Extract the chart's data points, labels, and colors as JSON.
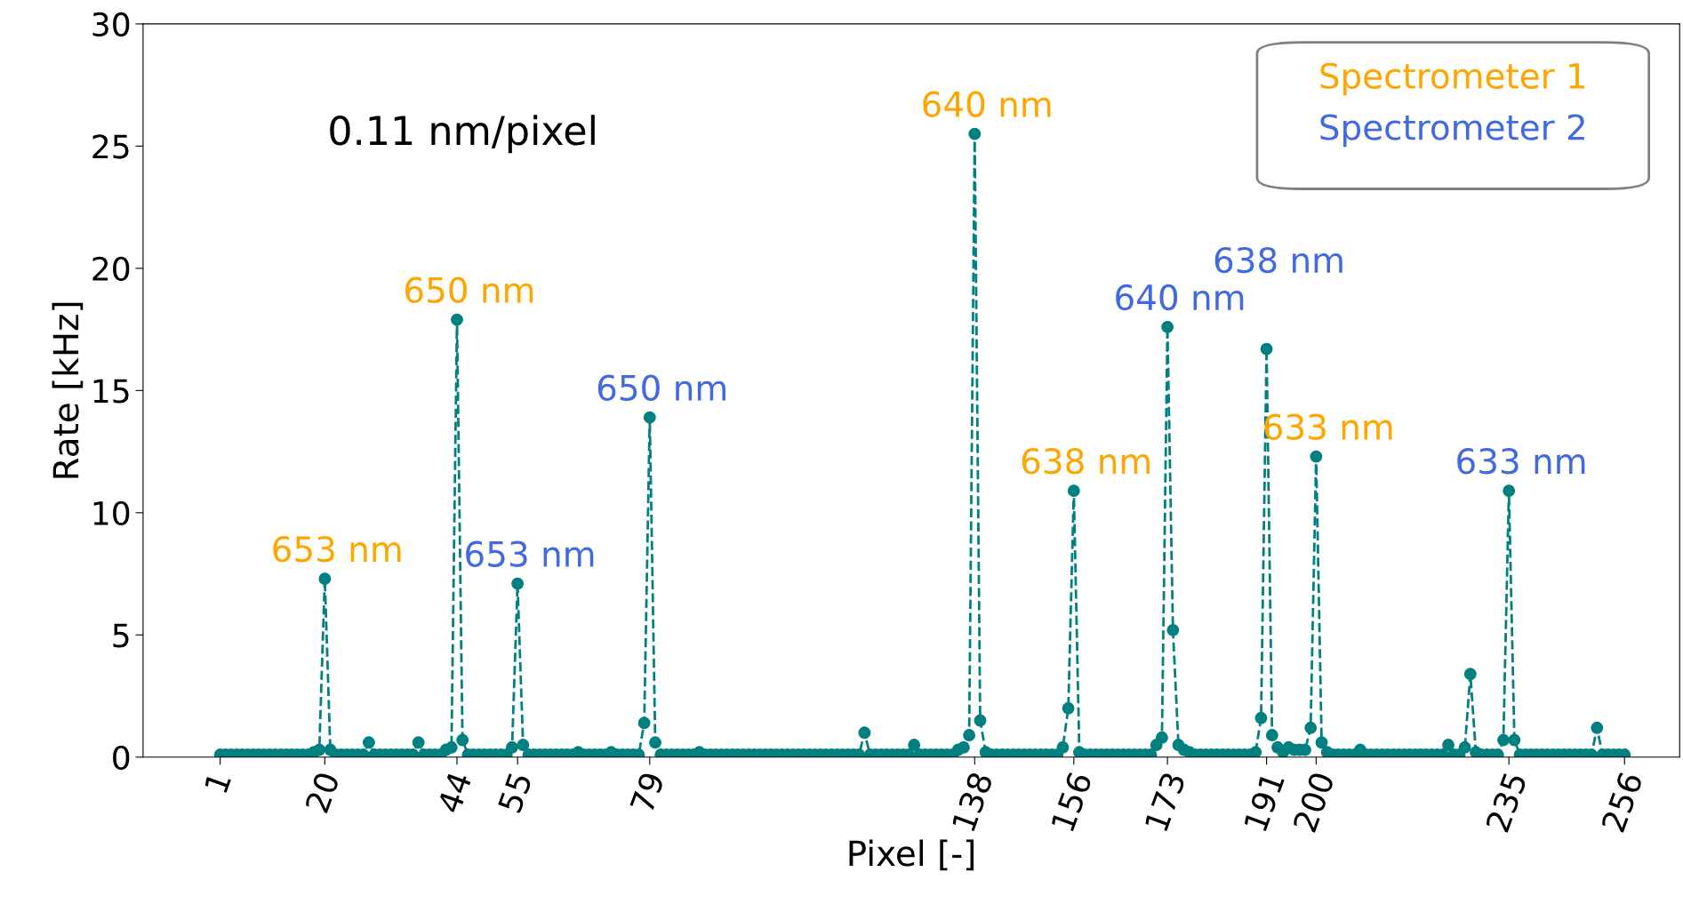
{
  "chart_data": {
    "type": "line",
    "xlabel": "Pixel [-]",
    "ylabel": "Rate [kHz]",
    "x": [
      1,
      2,
      3,
      4,
      5,
      6,
      7,
      8,
      9,
      10,
      11,
      12,
      13,
      14,
      15,
      16,
      17,
      18,
      19,
      20,
      21,
      22,
      23,
      24,
      25,
      26,
      27,
      28,
      29,
      30,
      31,
      32,
      33,
      34,
      35,
      36,
      37,
      38,
      39,
      40,
      41,
      42,
      43,
      44,
      45,
      46,
      47,
      48,
      49,
      50,
      51,
      52,
      53,
      54,
      55,
      56,
      57,
      58,
      59,
      60,
      61,
      62,
      63,
      64,
      65,
      66,
      67,
      68,
      69,
      70,
      71,
      72,
      73,
      74,
      75,
      76,
      77,
      78,
      79,
      80,
      81,
      82,
      83,
      84,
      85,
      86,
      87,
      88,
      89,
      90,
      91,
      92,
      93,
      94,
      95,
      96,
      97,
      98,
      99,
      100,
      101,
      102,
      103,
      104,
      105,
      106,
      107,
      108,
      109,
      110,
      111,
      112,
      113,
      114,
      115,
      116,
      117,
      118,
      119,
      120,
      121,
      122,
      123,
      124,
      125,
      126,
      127,
      128,
      129,
      130,
      131,
      132,
      133,
      134,
      135,
      136,
      137,
      138,
      139,
      140,
      141,
      142,
      143,
      144,
      145,
      146,
      147,
      148,
      149,
      150,
      151,
      152,
      153,
      154,
      155,
      156,
      157,
      158,
      159,
      160,
      161,
      162,
      163,
      164,
      165,
      166,
      167,
      168,
      169,
      170,
      171,
      172,
      173,
      174,
      175,
      176,
      177,
      178,
      179,
      180,
      181,
      182,
      183,
      184,
      185,
      186,
      187,
      188,
      189,
      190,
      191,
      192,
      193,
      194,
      195,
      196,
      197,
      198,
      199,
      200,
      201,
      202,
      203,
      204,
      205,
      206,
      207,
      208,
      209,
      210,
      211,
      212,
      213,
      214,
      215,
      216,
      217,
      218,
      219,
      220,
      221,
      222,
      223,
      224,
      225,
      226,
      227,
      228,
      229,
      230,
      231,
      232,
      233,
      234,
      235,
      236,
      237,
      238,
      239,
      240,
      241,
      242,
      243,
      244,
      245,
      246,
      247,
      248,
      249,
      250,
      251,
      252,
      253,
      254,
      255,
      256
    ],
    "series": [
      {
        "color": "#008080",
        "values": [
          0.1,
          0.1,
          0.1,
          0.1,
          0.1,
          0.1,
          0.1,
          0.1,
          0.1,
          0.1,
          0.1,
          0.1,
          0.1,
          0.1,
          0.1,
          0.1,
          0.1,
          0.2,
          0.3,
          7.3,
          0.3,
          0.1,
          0.1,
          0.1,
          0.1,
          0.1,
          0.1,
          0.6,
          0.1,
          0.1,
          0.1,
          0.1,
          0.1,
          0.1,
          0.1,
          0.1,
          0.6,
          0.1,
          0.1,
          0.1,
          0.1,
          0.3,
          0.4,
          17.9,
          0.7,
          0.1,
          0.1,
          0.1,
          0.1,
          0.1,
          0.1,
          0.1,
          0.1,
          0.4,
          7.1,
          0.5,
          0.1,
          0.1,
          0.1,
          0.1,
          0.1,
          0.1,
          0.1,
          0.1,
          0.1,
          0.2,
          0.1,
          0.1,
          0.1,
          0.1,
          0.1,
          0.2,
          0.1,
          0.1,
          0.1,
          0.1,
          0.1,
          1.4,
          13.9,
          0.6,
          0.1,
          0.1,
          0.1,
          0.1,
          0.1,
          0.1,
          0.1,
          0.2,
          0.1,
          0.1,
          0.1,
          0.1,
          0.1,
          0.1,
          0.1,
          0.1,
          0.1,
          0.1,
          0.1,
          0.1,
          0.1,
          0.1,
          0.1,
          0.1,
          0.1,
          0.1,
          0.1,
          0.1,
          0.1,
          0.1,
          0.1,
          0.1,
          0.1,
          0.1,
          0.1,
          0.1,
          0.1,
          1.0,
          0.1,
          0.1,
          0.1,
          0.1,
          0.1,
          0.1,
          0.1,
          0.1,
          0.5,
          0.1,
          0.1,
          0.1,
          0.1,
          0.1,
          0.1,
          0.1,
          0.3,
          0.4,
          0.9,
          25.5,
          1.5,
          0.2,
          0.1,
          0.1,
          0.1,
          0.1,
          0.1,
          0.1,
          0.1,
          0.1,
          0.1,
          0.1,
          0.1,
          0.1,
          0.1,
          0.4,
          2.0,
          10.9,
          0.2,
          0.1,
          0.1,
          0.1,
          0.1,
          0.1,
          0.1,
          0.1,
          0.1,
          0.1,
          0.1,
          0.1,
          0.1,
          0.1,
          0.5,
          0.8,
          17.6,
          5.2,
          0.5,
          0.3,
          0.2,
          0.1,
          0.1,
          0.1,
          0.1,
          0.1,
          0.1,
          0.1,
          0.1,
          0.1,
          0.1,
          0.1,
          0.2,
          1.6,
          16.7,
          0.9,
          0.4,
          0.2,
          0.4,
          0.3,
          0.3,
          0.3,
          1.2,
          12.3,
          0.6,
          0.2,
          0.1,
          0.1,
          0.1,
          0.1,
          0.1,
          0.3,
          0.1,
          0.1,
          0.1,
          0.1,
          0.1,
          0.1,
          0.1,
          0.1,
          0.1,
          0.1,
          0.1,
          0.1,
          0.1,
          0.1,
          0.1,
          0.5,
          0.1,
          0.1,
          0.4,
          3.4,
          0.2,
          0.1,
          0.1,
          0.1,
          0.1,
          0.7,
          10.9,
          0.7,
          0.1,
          0.1,
          0.1,
          0.1,
          0.1,
          0.1,
          0.1,
          0.1,
          0.1,
          0.1,
          0.1,
          0.1,
          0.1,
          0.1,
          1.2,
          0.1,
          0.1,
          0.1,
          0.1,
          0.1
        ]
      }
    ],
    "marker": "circle",
    "line_style": "dashed",
    "xlim": [
      -13,
      266
    ],
    "xticks": [
      1,
      20,
      44,
      55,
      79,
      138,
      156,
      173,
      191,
      200,
      235,
      256
    ],
    "ylim": [
      0,
      30
    ],
    "yticks": [
      0,
      5,
      10,
      15,
      20,
      25,
      30
    ],
    "grid": false,
    "annotations": [
      "0.11 nm/pixel",
      "Spectrometer 1",
      "Spectrometer 2",
      {
        "text": "653 nm",
        "x": 20,
        "y": 7.3
      },
      {
        "text": "650 nm",
        "x": 44,
        "y": 17.9
      },
      {
        "text": "653 nm",
        "x": 55,
        "y": 7.1
      },
      {
        "text": "650 nm",
        "x": 79,
        "y": 13.9
      },
      {
        "text": "640 nm",
        "x": 138,
        "y": 25.5
      },
      {
        "text": "638 nm",
        "x": 156,
        "y": 10.9
      },
      {
        "text": "640 nm",
        "x": 173,
        "y": 17.6
      },
      {
        "text": "638 nm",
        "x": 191,
        "y": 16.7
      },
      {
        "text": "633 nm",
        "x": 200,
        "y": 12.3
      },
      {
        "text": "633 nm",
        "x": 235,
        "y": 10.9
      }
    ]
  }
}
